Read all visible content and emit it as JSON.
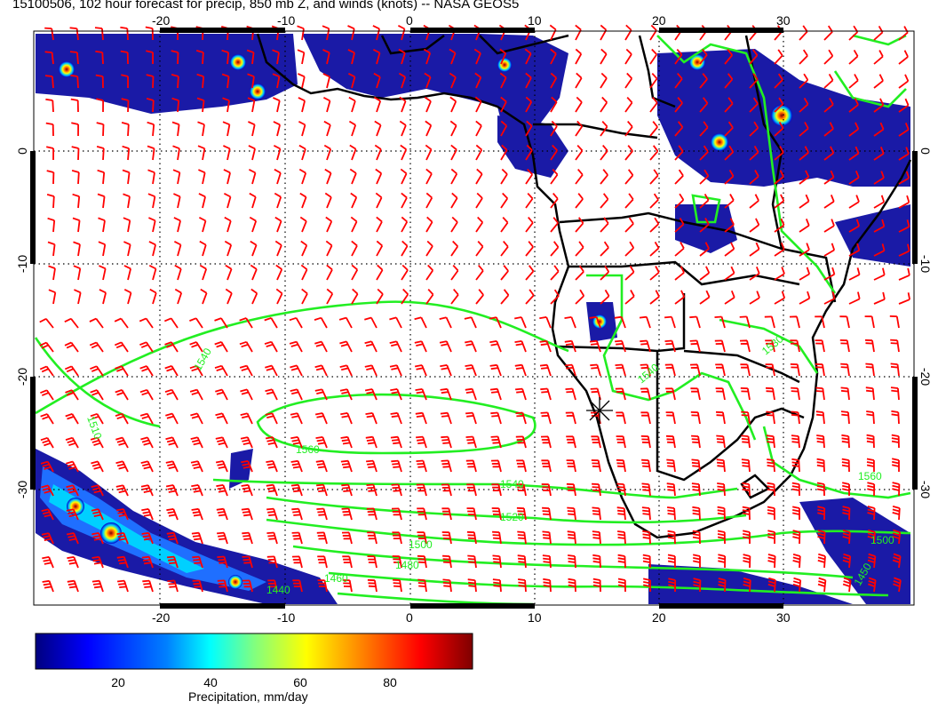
{
  "title": "15100506, 102 hour forecast for precip, 850 mb Z, and winds (knots) -- NASA GEOS5",
  "map": {
    "lon_range": [
      -30,
      41
    ],
    "lat_range": [
      -39.5,
      11
    ],
    "lon_ticks": [
      "-20",
      "-10",
      "0",
      "10",
      "20",
      "30"
    ],
    "lat_ticks": [
      "0",
      "-10",
      "-20",
      "-30"
    ],
    "grid": "dotted",
    "colors": {
      "wind_barbs": "#ff0000",
      "contours": "#22ee22",
      "coast": "#000000"
    }
  },
  "contour_labels": [
    "1540",
    "1510",
    "1560",
    "1540",
    "1520",
    "1500",
    "1480",
    "1460",
    "1440",
    "1450",
    "1560",
    "1500",
    "1540",
    "1530"
  ],
  "colorbar": {
    "label": "Precipitation, mm/day",
    "ticks": [
      "20",
      "40",
      "60",
      "80"
    ],
    "range": [
      0,
      100
    ],
    "colors": [
      "#00007f",
      "#0000ff",
      "#0080ff",
      "#00ffff",
      "#80ff80",
      "#ffff00",
      "#ff8000",
      "#ff0000",
      "#7f0000"
    ]
  }
}
